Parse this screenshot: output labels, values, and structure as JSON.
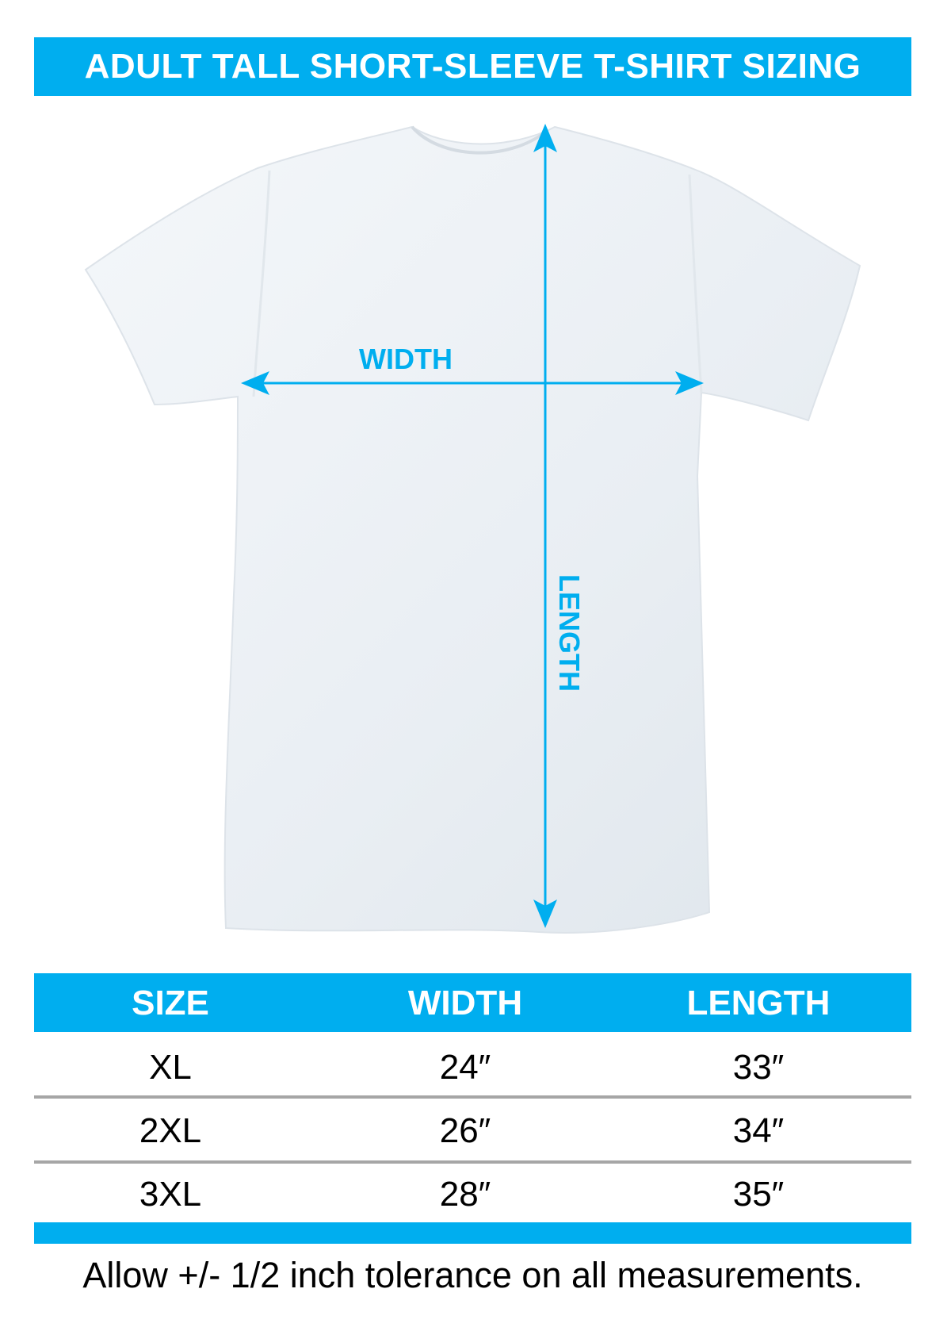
{
  "title": "ADULT TALL SHORT-SLEEVE T-SHIRT SIZING",
  "accent_color": "#00aeef",
  "diagram": {
    "width_label": "WIDTH",
    "length_label": "LENGTH"
  },
  "table": {
    "headers": [
      "SIZE",
      "WIDTH",
      "LENGTH"
    ],
    "rows": [
      [
        "XL",
        "24″",
        "33″"
      ],
      [
        "2XL",
        "26″",
        "34″"
      ],
      [
        "3XL",
        "28″",
        "35″"
      ]
    ]
  },
  "footnote": "Allow +/- 1/2 inch tolerance on all measurements."
}
